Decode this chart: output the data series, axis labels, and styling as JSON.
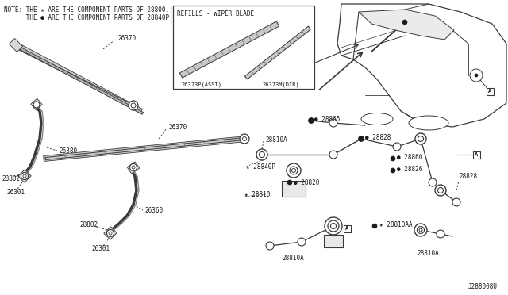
{
  "bg_color": "#ffffff",
  "line_color": "#3a3a3a",
  "text_color": "#1a1a1a",
  "fig_width": 6.4,
  "fig_height": 3.72,
  "note_line1": "NOTE: THE ★ ARE THE COMPONENT PARTS OF 28800.",
  "note_line2": "      THE ● ARE THE COMPONENT PARTS OF 28840P.",
  "refills_title": "REFILLS - WIPER BLADE",
  "diagram_id": "J288008U"
}
